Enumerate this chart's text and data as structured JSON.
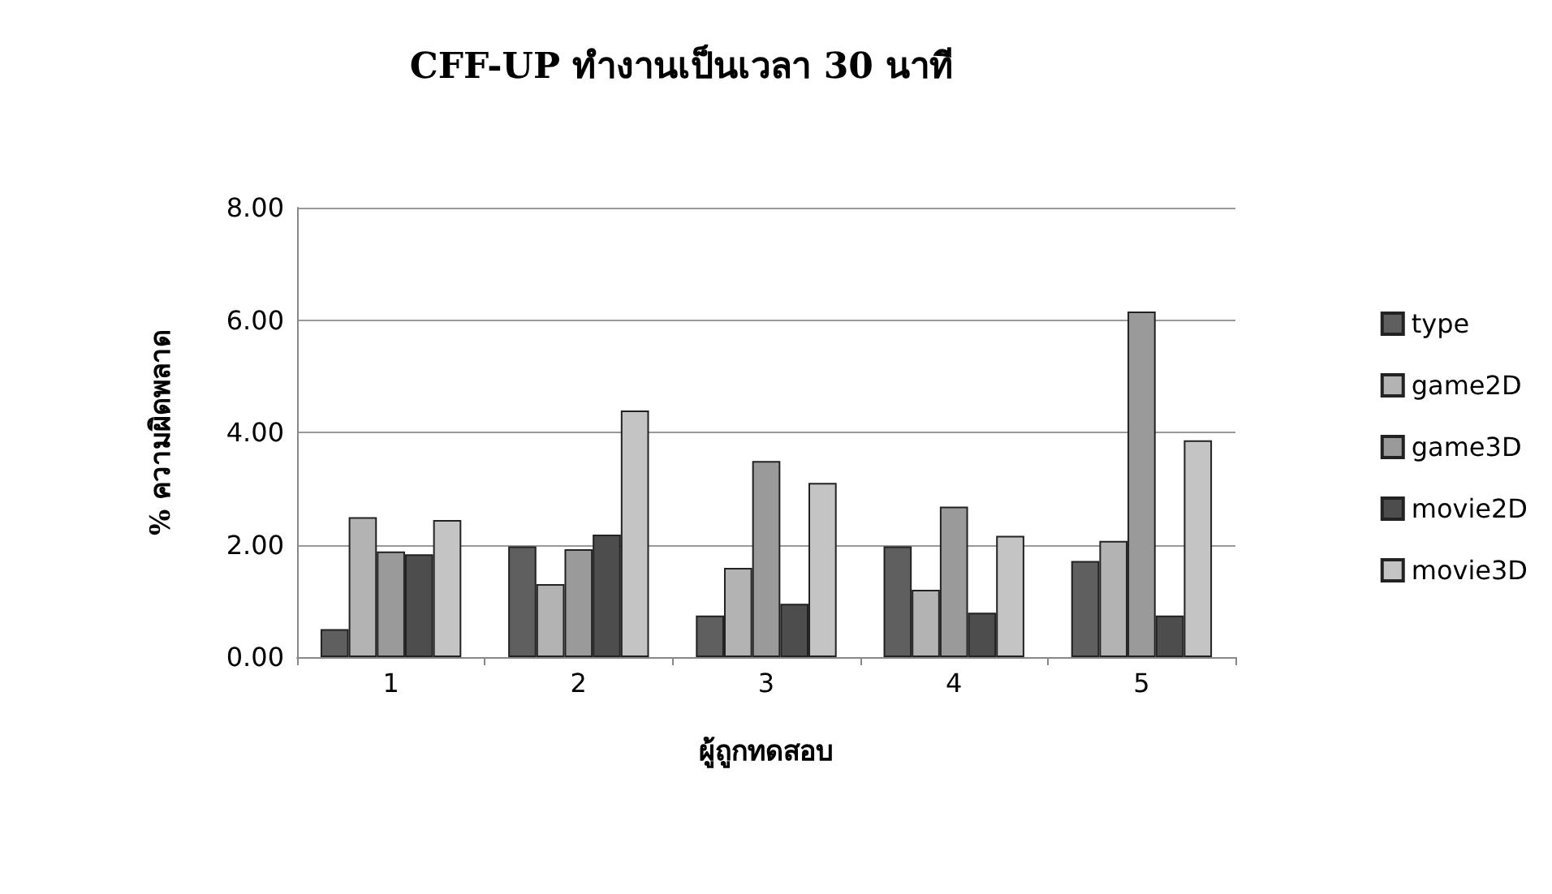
{
  "chart_data": {
    "type": "bar",
    "title": "CFF-UP ทำงานเป็นเวลา 30 นาที",
    "xlabel": "ผู้ถูกทดสอบ",
    "ylabel": "% ความผิดพลาด",
    "categories": [
      "1",
      "2",
      "3",
      "4",
      "5"
    ],
    "series": [
      {
        "name": "type",
        "color": "#5f5f5f",
        "values": [
          0.5,
          1.97,
          0.74,
          1.97,
          1.71
        ]
      },
      {
        "name": "game2D",
        "color": "#b3b3b3",
        "values": [
          2.49,
          1.3,
          1.59,
          1.2,
          2.07
        ]
      },
      {
        "name": "game3D",
        "color": "#9a9a9a",
        "values": [
          1.88,
          1.92,
          3.49,
          2.68,
          6.15
        ]
      },
      {
        "name": "movie2D",
        "color": "#4d4d4d",
        "values": [
          1.83,
          2.18,
          0.95,
          0.79,
          0.74
        ]
      },
      {
        "name": "movie3D",
        "color": "#c4c4c4",
        "values": [
          2.44,
          4.39,
          3.1,
          2.16,
          3.86
        ]
      }
    ],
    "ylim": [
      0,
      8
    ],
    "yticks": [
      {
        "value": 0,
        "label": "0.00"
      },
      {
        "value": 2,
        "label": "2.00"
      },
      {
        "value": 4,
        "label": "4.00"
      },
      {
        "value": 6,
        "label": "6.00"
      },
      {
        "value": 8,
        "label": "8.00"
      }
    ],
    "grid": "y",
    "legend": "right"
  }
}
